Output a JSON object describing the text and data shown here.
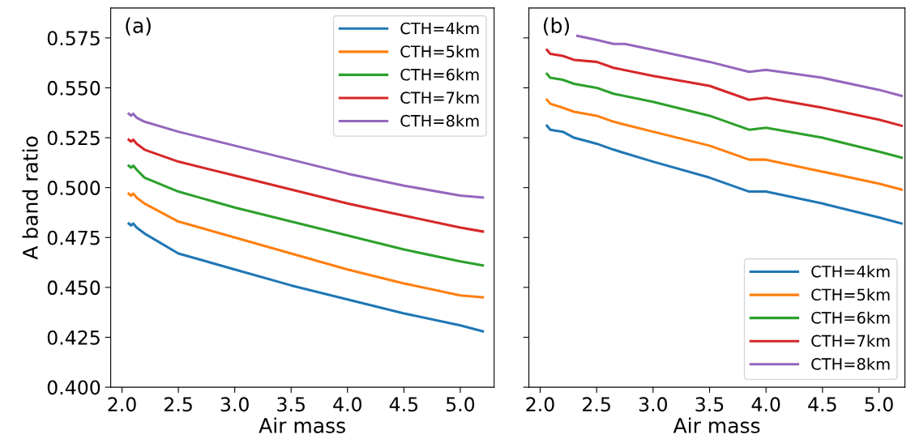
{
  "chart_data": [
    {
      "type": "line",
      "annotations": [
        "(a)"
      ],
      "xlabel": "Air mass",
      "ylabel": "A band ratio",
      "xlim": [
        1.9,
        5.3
      ],
      "ylim": [
        0.4,
        0.59
      ],
      "xticks": [
        {
          "value": 2.0,
          "label": "2.0"
        },
        2.5,
        {
          "value": 3.0,
          "label": "3.0"
        },
        3.5,
        {
          "value": 4.0,
          "label": "4.0"
        },
        4.5,
        {
          "value": 5.0,
          "label": "5.0"
        }
      ],
      "yticks": [
        {
          "value": 0.4,
          "label": "0.400"
        },
        0.425,
        {
          "value": 0.45,
          "label": "0.450"
        },
        0.475,
        {
          "value": 0.5,
          "label": "0.500"
        },
        0.525,
        {
          "value": 0.55,
          "label": "0.550"
        },
        0.575
      ],
      "grid": false,
      "legend": "top right",
      "x": [
        2.06,
        2.08,
        2.1,
        2.13,
        2.2,
        2.5,
        3.0,
        3.5,
        4.0,
        4.5,
        5.0,
        5.2
      ],
      "series": [
        {
          "name": "CTH=4km",
          "color": "#1f77b4",
          "values": [
            0.482,
            0.481,
            0.482,
            0.48,
            0.477,
            0.467,
            0.459,
            0.451,
            0.444,
            0.437,
            0.431,
            0.428
          ]
        },
        {
          "name": "CTH=5km",
          "color": "#ff7f0e",
          "values": [
            0.497,
            0.496,
            0.497,
            0.495,
            0.492,
            0.483,
            0.475,
            0.467,
            0.459,
            0.452,
            0.446,
            0.445
          ]
        },
        {
          "name": "CTH=6km",
          "color": "#2ca02c",
          "values": [
            0.511,
            0.51,
            0.511,
            0.509,
            0.505,
            0.498,
            0.49,
            0.483,
            0.476,
            0.469,
            0.463,
            0.461
          ]
        },
        {
          "name": "CTH=7km",
          "color": "#d62728",
          "values": [
            0.524,
            0.523,
            0.524,
            0.522,
            0.519,
            0.513,
            0.506,
            0.499,
            0.492,
            0.486,
            0.48,
            0.478
          ]
        },
        {
          "name": "CTH=8km",
          "color": "#9467bd",
          "values": [
            0.537,
            0.536,
            0.537,
            0.535,
            0.533,
            0.528,
            0.521,
            0.514,
            0.507,
            0.501,
            0.496,
            0.495
          ]
        }
      ]
    },
    {
      "type": "line",
      "annotations": [
        "(b)"
      ],
      "xlabel": "Air mass",
      "xlim": [
        1.9,
        5.23
      ],
      "ylim": [
        0.4,
        0.59
      ],
      "xticks": [
        {
          "value": 2.0,
          "label": "2.0"
        },
        2.5,
        {
          "value": 3.0,
          "label": "3.0"
        },
        3.5,
        {
          "value": 4.0,
          "label": "4.0"
        },
        4.5,
        {
          "value": 5.0,
          "label": "5.0"
        }
      ],
      "yticks": [
        {
          "value": 0.4,
          "label": null
        },
        {
          "value": 0.425,
          "label": null
        },
        {
          "value": 0.45,
          "label": null
        },
        {
          "value": 0.475,
          "label": null
        },
        {
          "value": 0.5,
          "label": null
        },
        {
          "value": 0.525,
          "label": null
        },
        {
          "value": 0.55,
          "label": null
        },
        {
          "value": 0.575,
          "label": null
        }
      ],
      "tick_labels": "x",
      "grid": false,
      "legend": "bottom right",
      "x": [
        2.06,
        2.09,
        2.2,
        2.3,
        2.5,
        2.65,
        3.0,
        3.5,
        3.85,
        4.0,
        4.5,
        5.0,
        5.2
      ],
      "series": [
        {
          "name": "CTH=4km",
          "color": "#1f77b4",
          "values": [
            0.531,
            0.529,
            0.528,
            0.525,
            0.522,
            0.519,
            0.513,
            0.505,
            0.498,
            0.498,
            0.492,
            0.485,
            0.482
          ]
        },
        {
          "name": "CTH=5km",
          "color": "#ff7f0e",
          "values": [
            0.544,
            0.542,
            0.54,
            0.538,
            0.536,
            0.533,
            0.528,
            0.521,
            0.514,
            0.514,
            0.508,
            0.502,
            0.499
          ]
        },
        {
          "name": "CTH=6km",
          "color": "#2ca02c",
          "values": [
            0.557,
            0.555,
            0.554,
            0.552,
            0.55,
            0.547,
            0.543,
            0.536,
            0.529,
            0.53,
            0.525,
            0.518,
            0.515
          ]
        },
        {
          "name": "CTH=7km",
          "color": "#d62728",
          "values": [
            0.569,
            0.567,
            0.566,
            0.564,
            0.563,
            0.56,
            0.556,
            0.551,
            0.544,
            0.545,
            0.54,
            0.534,
            0.531
          ]
        },
        {
          "name": "CTH=8km",
          "color": "#9467bd",
          "x": [
            2.33,
            2.5,
            2.65,
            2.75,
            3.0,
            3.5,
            3.85,
            4.0,
            4.5,
            5.0,
            5.2
          ],
          "values": [
            0.576,
            0.574,
            0.572,
            0.572,
            0.569,
            0.563,
            0.558,
            0.559,
            0.555,
            0.549,
            0.546
          ]
        }
      ]
    }
  ]
}
